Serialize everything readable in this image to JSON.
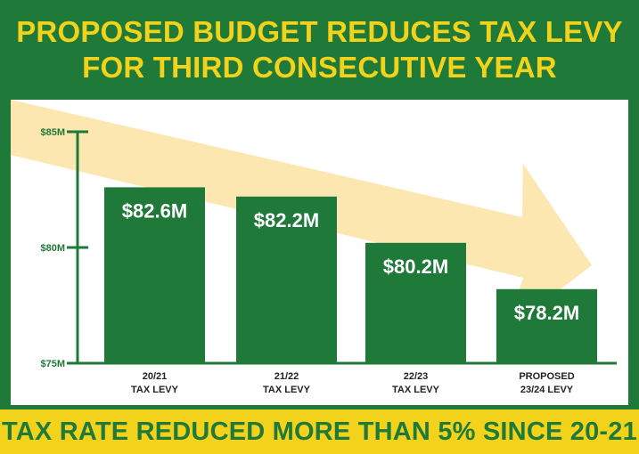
{
  "header": {
    "line1": "PROPOSED BUDGET REDUCES TAX LEVY",
    "line2": "FOR THIRD CONSECUTIVE YEAR"
  },
  "footer": {
    "text": "TAX RATE REDUCED MORE THAN 5% SINCE 20-21"
  },
  "colors": {
    "green": "#1f7a3a",
    "yellow": "#f2d21b",
    "arrow": "#fde7b0",
    "panel": "#ffffff"
  },
  "chart_data": {
    "type": "bar",
    "title": "",
    "xlabel": "",
    "ylabel": "",
    "ylim": [
      75,
      85
    ],
    "yticks": [
      {
        "value": 85,
        "label": "$85M"
      },
      {
        "value": 80,
        "label": "$80M"
      },
      {
        "value": 75,
        "label": "$75M"
      }
    ],
    "categories": [
      [
        "20/21",
        "TAX LEVY"
      ],
      [
        "21/22",
        "TAX LEVY"
      ],
      [
        "22/23",
        "TAX LEVY"
      ],
      [
        "PROPOSED",
        "23/24 LEVY"
      ]
    ],
    "values": [
      82.6,
      82.2,
      80.2,
      78.2
    ],
    "value_labels": [
      "$82.6M",
      "$82.2M",
      "$80.2M",
      "$78.2M"
    ],
    "decoration": "downward-trend-arrow"
  }
}
